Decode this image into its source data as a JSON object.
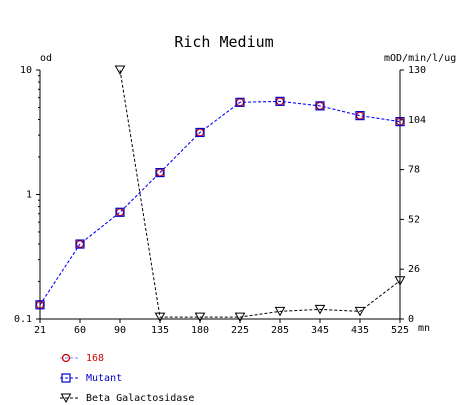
{
  "chart_data": {
    "type": "line",
    "title": "Rich Medium",
    "ylabel_left": "od",
    "ylabel_right": "mOD/min/l/ug",
    "xlabel_unit": "mn",
    "x_ticks": [
      21,
      60,
      90,
      135,
      180,
      225,
      285,
      345,
      435,
      525
    ],
    "y_left_scale": "log",
    "y_left_range": [
      0.1,
      10
    ],
    "y_left_ticks": [
      "10",
      "1",
      "0.1"
    ],
    "y_right_range": [
      0,
      130
    ],
    "y_right_ticks": [
      "130",
      "104",
      "78",
      "52",
      "26",
      "0"
    ],
    "grid": false,
    "legend_position": "bottom-left",
    "series": [
      {
        "name": "168",
        "axis": "left",
        "color": "#d00000",
        "marker": "circle",
        "line_color": "#8080ff",
        "x": [
          21,
          60,
          90,
          135,
          180,
          225,
          285,
          345,
          435,
          525
        ],
        "y": [
          0.13,
          0.4,
          0.72,
          1.5,
          3.15,
          5.5,
          5.6,
          5.15,
          4.3,
          3.85
        ]
      },
      {
        "name": "Mutant",
        "axis": "left",
        "color": "#0000c8",
        "marker": "square",
        "line_color": "#0000ff",
        "x": [
          21,
          60,
          90,
          135,
          180,
          225,
          285,
          345,
          435,
          525
        ],
        "y": [
          0.13,
          0.4,
          0.72,
          1.5,
          3.15,
          5.5,
          5.6,
          5.15,
          4.3,
          3.85
        ]
      },
      {
        "name": "Beta Galactosidase",
        "axis": "right",
        "color": "#000000",
        "marker": "triangle-down",
        "line_color": "#000000",
        "x": [
          90,
          135,
          180,
          225,
          285,
          345,
          435,
          525
        ],
        "y": [
          130,
          1,
          1,
          1,
          4,
          5,
          4,
          20
        ]
      }
    ]
  }
}
